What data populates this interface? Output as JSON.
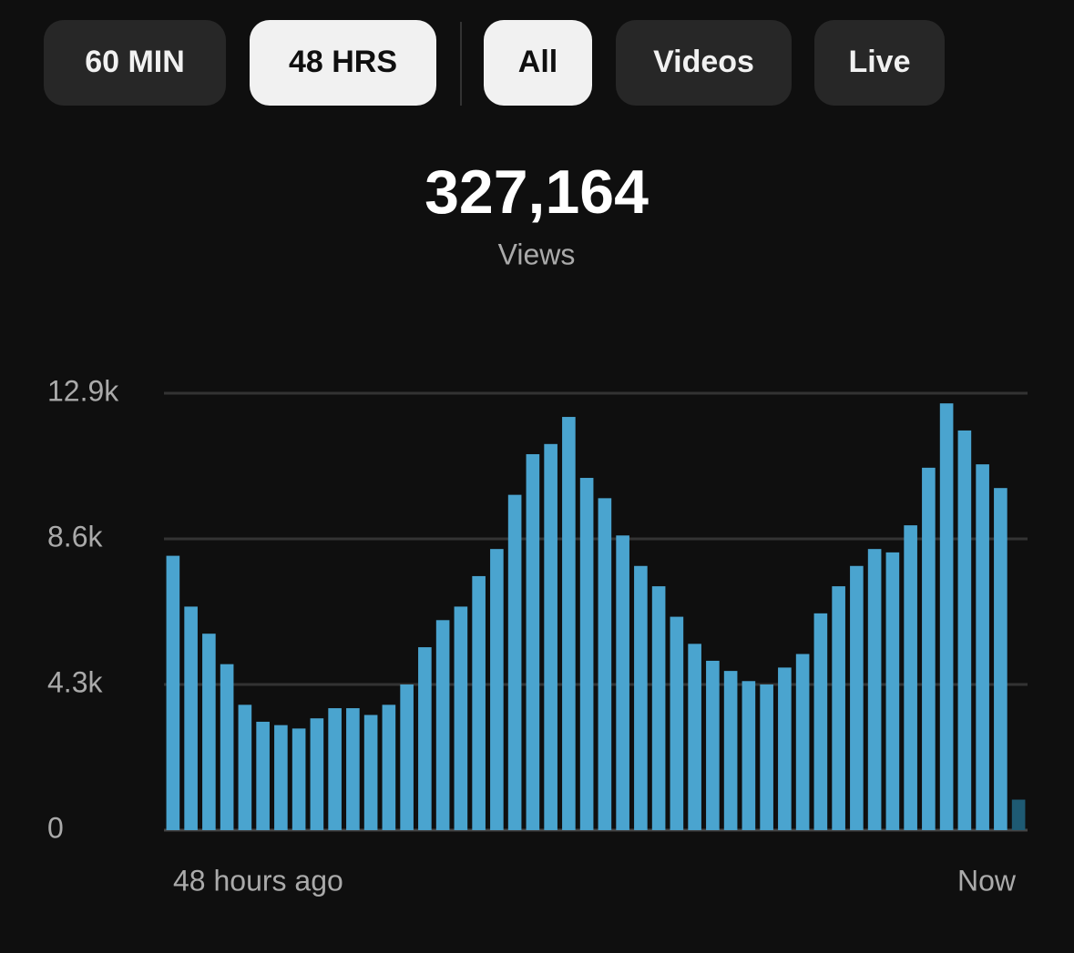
{
  "tabs": [
    {
      "label": "60 MIN",
      "selected": false
    },
    {
      "label": "48 HRS",
      "selected": true
    }
  ],
  "filters": [
    {
      "label": "All",
      "selected": true
    },
    {
      "label": "Videos",
      "selected": false
    },
    {
      "label": "Live",
      "selected": false
    }
  ],
  "total": "327,164",
  "total_label": "Views",
  "chart_data": {
    "type": "bar",
    "categories": [
      "48 hours ago",
      null,
      null,
      null,
      null,
      null,
      null,
      null,
      null,
      null,
      null,
      null,
      null,
      null,
      null,
      null,
      null,
      null,
      null,
      null,
      null,
      null,
      null,
      null,
      null,
      null,
      null,
      null,
      null,
      null,
      null,
      null,
      null,
      null,
      null,
      null,
      null,
      null,
      null,
      null,
      null,
      null,
      null,
      null,
      null,
      null,
      null,
      "Now"
    ],
    "values": [
      8.1,
      6.6,
      5.8,
      4.9,
      3.7,
      3.2,
      3.1,
      3.0,
      3.3,
      3.6,
      3.6,
      3.4,
      3.7,
      4.3,
      5.4,
      6.2,
      6.6,
      7.5,
      8.3,
      9.9,
      11.1,
      11.4,
      12.2,
      10.4,
      9.8,
      8.7,
      7.8,
      7.2,
      6.3,
      5.5,
      5.0,
      4.7,
      4.4,
      4.3,
      4.8,
      5.2,
      6.4,
      7.2,
      7.8,
      8.3,
      8.2,
      9.0,
      10.7,
      12.6,
      11.8,
      10.8,
      10.1,
      0.9
    ],
    "colors": [
      "#4aa4cf",
      "#4aa4cf",
      "#4aa4cf",
      "#4aa4cf",
      "#4aa4cf",
      "#4aa4cf",
      "#4aa4cf",
      "#4aa4cf",
      "#4aa4cf",
      "#4aa4cf",
      "#4aa4cf",
      "#4aa4cf",
      "#4aa4cf",
      "#4aa4cf",
      "#4aa4cf",
      "#4aa4cf",
      "#4aa4cf",
      "#4aa4cf",
      "#4aa4cf",
      "#4aa4cf",
      "#4aa4cf",
      "#4aa4cf",
      "#4aa4cf",
      "#4aa4cf",
      "#4aa4cf",
      "#4aa4cf",
      "#4aa4cf",
      "#4aa4cf",
      "#4aa4cf",
      "#4aa4cf",
      "#4aa4cf",
      "#4aa4cf",
      "#4aa4cf",
      "#4aa4cf",
      "#4aa4cf",
      "#4aa4cf",
      "#4aa4cf",
      "#4aa4cf",
      "#4aa4cf",
      "#4aa4cf",
      "#4aa4cf",
      "#4aa4cf",
      "#4aa4cf",
      "#4aa4cf",
      "#4aa4cf",
      "#4aa4cf",
      "#4aa4cf",
      "#1e5a73"
    ],
    "ylim": [
      0,
      12.9
    ],
    "yticks": [
      0,
      {
        "value": 4.3,
        "label": "4.3k"
      },
      {
        "value": 8.6,
        "label": "8.6k"
      },
      {
        "value": 12.9,
        "label": "12.9k"
      }
    ],
    "grid": true
  }
}
